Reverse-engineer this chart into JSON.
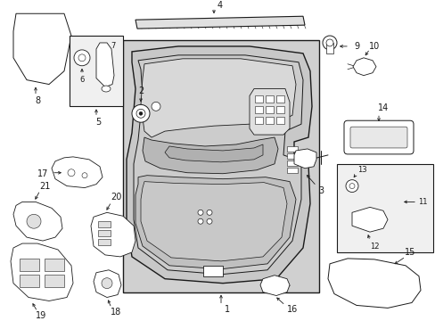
{
  "bg_color": "#ffffff",
  "line_color": "#1a1a1a",
  "door_bg": "#d8d8d8",
  "parts": {
    "labels": [
      "1",
      "2",
      "3",
      "4",
      "5",
      "6",
      "7",
      "8",
      "9",
      "10",
      "11",
      "12",
      "13",
      "14",
      "15",
      "16",
      "17",
      "18",
      "19",
      "20",
      "21"
    ]
  }
}
